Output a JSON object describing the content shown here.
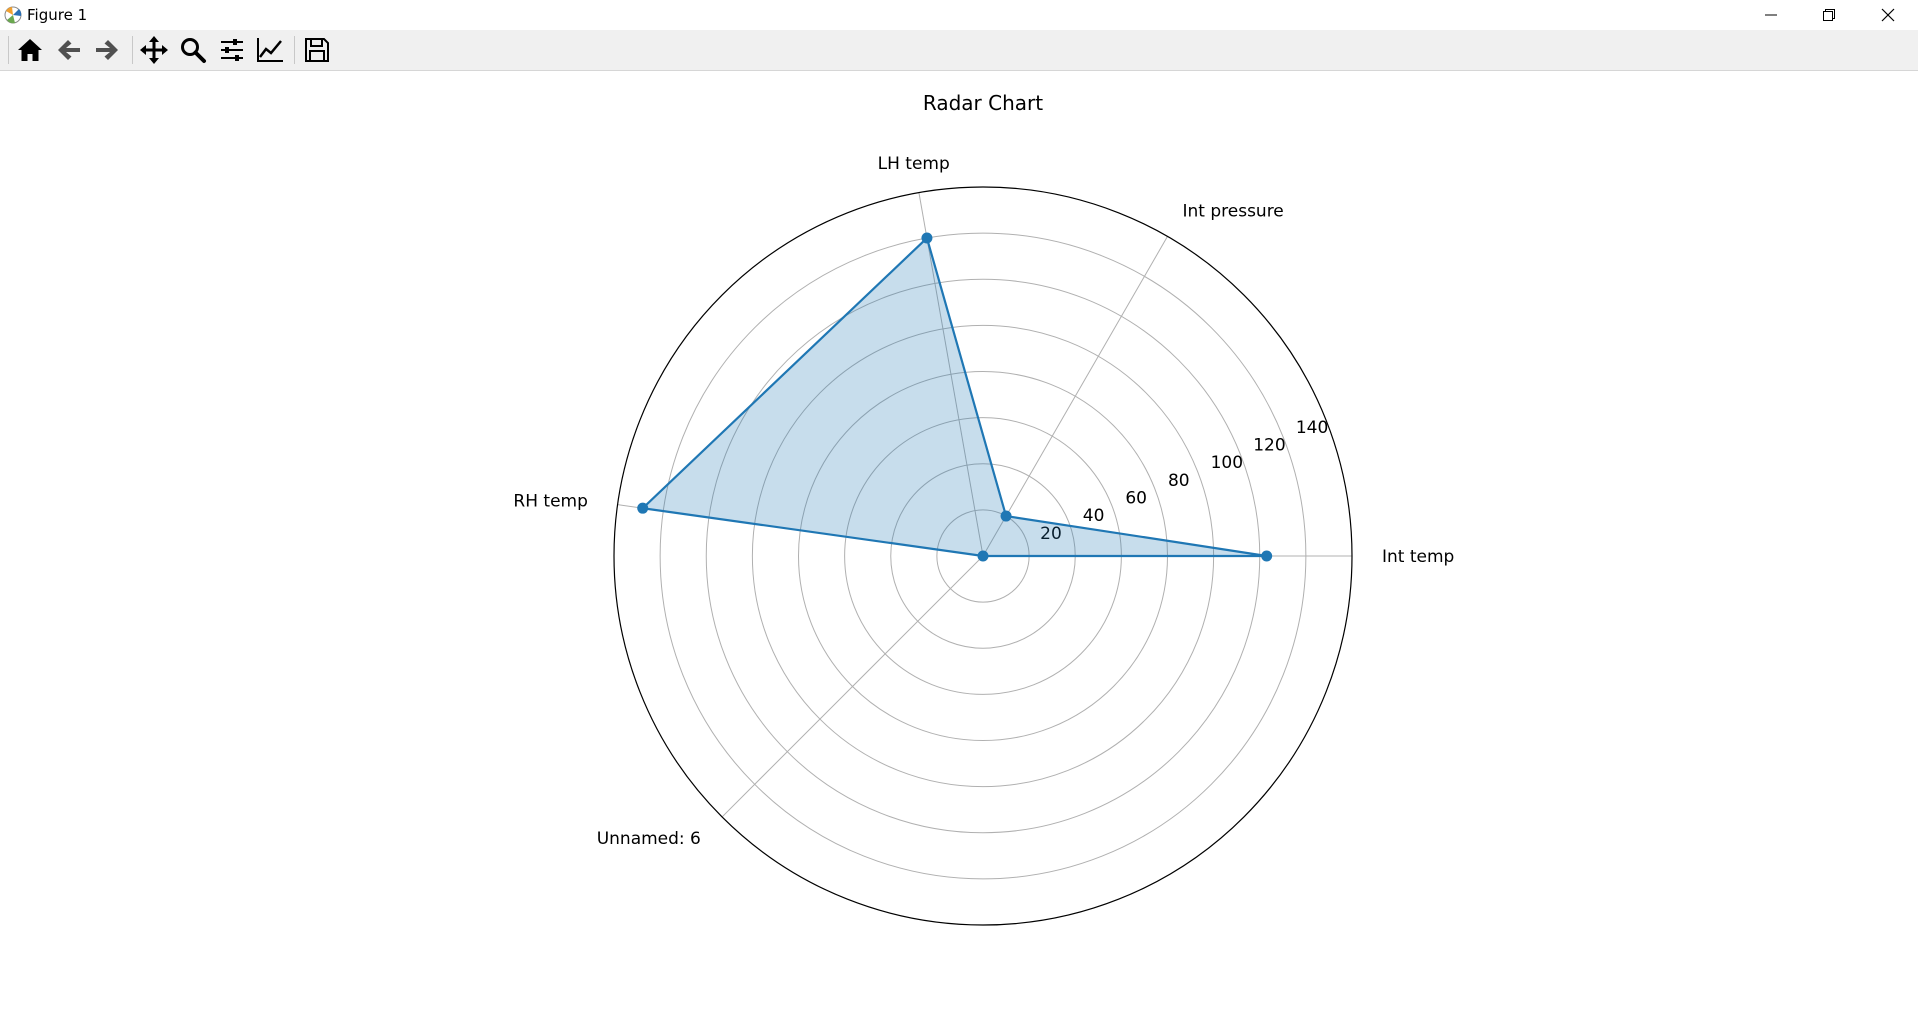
{
  "window": {
    "title": "Figure 1",
    "controls": [
      "minimize-icon",
      "restore-icon",
      "close-icon"
    ]
  },
  "toolbar": {
    "buttons": [
      {
        "name": "home-icon",
        "tooltip": "Home"
      },
      {
        "name": "back-icon",
        "tooltip": "Back"
      },
      {
        "name": "forward-icon",
        "tooltip": "Forward"
      },
      {
        "name": "pan-icon",
        "tooltip": "Pan"
      },
      {
        "name": "zoom-icon",
        "tooltip": "Zoom"
      },
      {
        "name": "subplots-icon",
        "tooltip": "Configure subplots"
      },
      {
        "name": "edit-axis-icon",
        "tooltip": "Edit axis"
      },
      {
        "name": "save-icon",
        "tooltip": "Save"
      }
    ]
  },
  "chart_data": {
    "type": "radar",
    "title": "Radar Chart",
    "axes": [
      "Int temp",
      "Int pressure",
      "LH temp",
      "RH temp",
      "Unnamed: 6"
    ],
    "angles_deg": [
      0,
      60,
      100,
      172,
      225
    ],
    "values": [
      123,
      20,
      140,
      149,
      0
    ],
    "r_ticks": [
      20,
      40,
      60,
      80,
      100,
      120,
      140
    ],
    "rlim": [
      0,
      160
    ],
    "r_label_angle_deg": 22.5,
    "grid": true,
    "colors": {
      "line": "#1f77b4",
      "fill": "#1f77b4",
      "fill_alpha": 0.25,
      "grid": "#b0b0b0"
    }
  }
}
